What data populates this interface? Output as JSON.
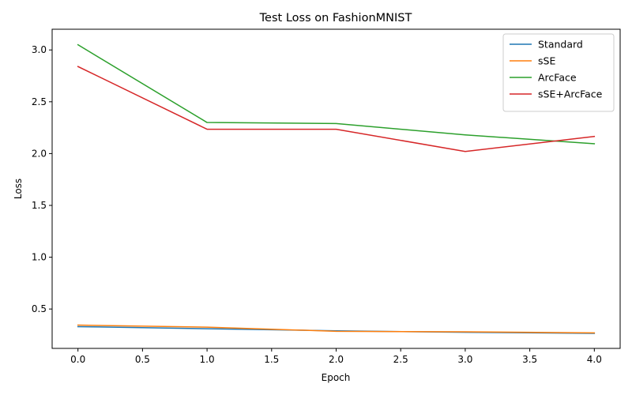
{
  "chart_data": {
    "type": "line",
    "title": "Test Loss on FashionMNIST",
    "xlabel": "Epoch",
    "ylabel": "Loss",
    "x": [
      0,
      1,
      2,
      3,
      4
    ],
    "xlim": [
      -0.2,
      4.2
    ],
    "ylim": [
      0.12,
      3.2
    ],
    "xticks": [
      "0.0",
      "0.5",
      "1.0",
      "1.5",
      "2.0",
      "2.5",
      "3.0",
      "3.5",
      "4.0"
    ],
    "yticks": [
      "0.5",
      "1.0",
      "1.5",
      "2.0",
      "2.5",
      "3.0"
    ],
    "grid": false,
    "legend_position": "top-right",
    "series": [
      {
        "name": "Standard",
        "color": "#1f77b4",
        "values": [
          0.33,
          0.31,
          0.29,
          0.275,
          0.265
        ]
      },
      {
        "name": "sSE",
        "color": "#ff7f0e",
        "values": [
          0.345,
          0.325,
          0.285,
          0.28,
          0.27
        ]
      },
      {
        "name": "ArcFace",
        "color": "#2ca02c",
        "values": [
          3.05,
          2.3,
          2.29,
          2.18,
          2.095
        ]
      },
      {
        "name": "sSE+ArcFace",
        "color": "#d62728",
        "values": [
          2.84,
          2.235,
          2.235,
          2.02,
          2.165
        ]
      }
    ]
  }
}
